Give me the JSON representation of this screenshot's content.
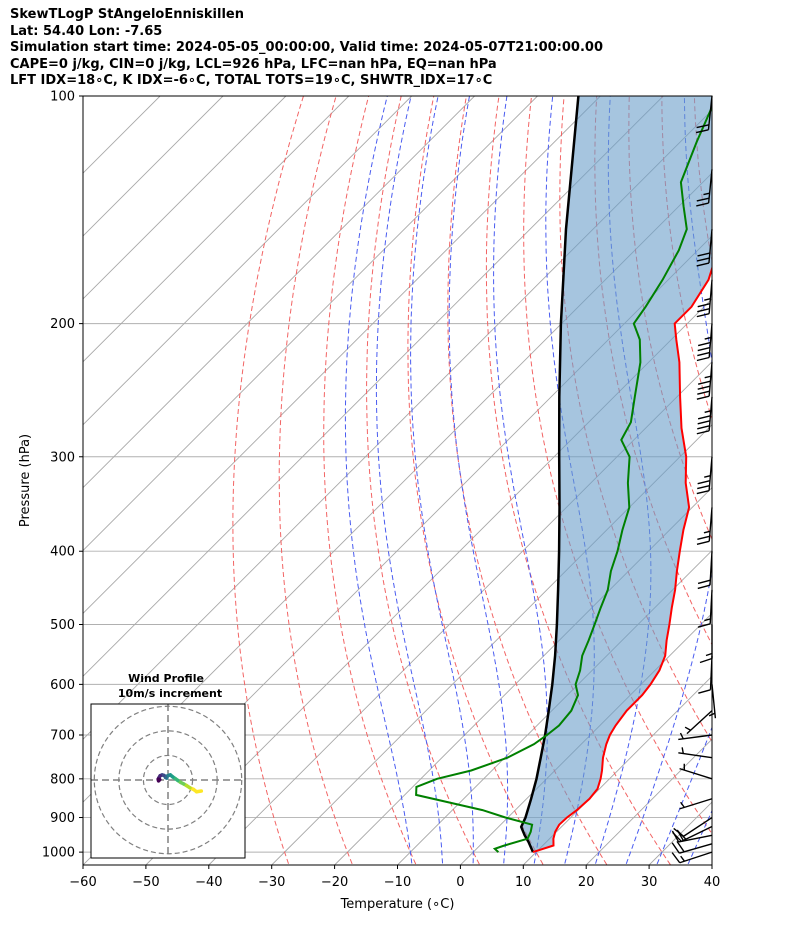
{
  "header": {
    "lines": [
      "SkewTLogP StAngeloEnniskillen",
      "Lat: 54.40   Lon: -7.65",
      "Simulation start time: 2024-05-05_00:00:00, Valid time: 2024-05-07T21:00:00.00",
      "CAPE=0 j/kg, CIN=0 j/kg, LCL=926 hPa, LFC=nan hPa, EQ=nan hPa",
      "LFT IDX=18∘C, K IDX=-6∘C, TOTAL TOTS=19∘C, SHWTR_IDX=17∘C"
    ]
  },
  "chart_data": {
    "type": "line",
    "subtype": "skew-t log-p",
    "xlabel": "Temperature (∘C)",
    "ylabel": "Pressure (hPa)",
    "xlim": [
      -60,
      40
    ],
    "ylim": [
      1040,
      100
    ],
    "y_scale": "log",
    "x_ticks": [
      -60,
      -50,
      -40,
      -30,
      -20,
      -10,
      0,
      10,
      20,
      30,
      40
    ],
    "x_tick_labels": [
      "−60",
      "−50",
      "−40",
      "−30",
      "−20",
      "−10",
      "0",
      "10",
      "20",
      "30",
      "40"
    ],
    "y_ticks": [
      1000,
      900,
      800,
      700,
      600,
      500,
      400,
      300,
      200,
      100
    ],
    "y_tick_labels": [
      "1000",
      "900",
      "800",
      "700",
      "600",
      "500",
      "400",
      "300",
      "200",
      "100"
    ],
    "grid": true,
    "series": [
      {
        "role": "temperature",
        "color": "#ff0000",
        "points": [
          [
            1000,
            9.5
          ],
          [
            980,
            11.7
          ],
          [
            960,
            10.6
          ],
          [
            940,
            9.8
          ],
          [
            920,
            9.3
          ],
          [
            900,
            9.4
          ],
          [
            880,
            9.8
          ],
          [
            850,
            10.0
          ],
          [
            825,
            9.7
          ],
          [
            800,
            8.6
          ],
          [
            780,
            7.5
          ],
          [
            750,
            5.6
          ],
          [
            720,
            4.0
          ],
          [
            700,
            3.1
          ],
          [
            680,
            2.5
          ],
          [
            650,
            1.9
          ],
          [
            620,
            1.9
          ],
          [
            600,
            1.5
          ],
          [
            575,
            0.7
          ],
          [
            550,
            -0.7
          ],
          [
            525,
            -2.9
          ],
          [
            500,
            -5.0
          ],
          [
            475,
            -7.3
          ],
          [
            450,
            -9.6
          ],
          [
            425,
            -12.3
          ],
          [
            400,
            -15.0
          ],
          [
            375,
            -17.8
          ],
          [
            350,
            -20.5
          ],
          [
            325,
            -24.9
          ],
          [
            300,
            -29.0
          ],
          [
            275,
            -34.3
          ],
          [
            250,
            -39.5
          ],
          [
            225,
            -45.1
          ],
          [
            210,
            -49.2
          ],
          [
            200,
            -52.0
          ],
          [
            190,
            -52.0
          ],
          [
            175,
            -53.6
          ],
          [
            160,
            -56.8
          ],
          [
            145,
            -57.5
          ],
          [
            130,
            -57.3
          ],
          [
            115,
            -57.9
          ],
          [
            100,
            -59.0
          ]
        ]
      },
      {
        "role": "dewpoint",
        "color": "#008000",
        "points": [
          [
            1000,
            4.0
          ],
          [
            990,
            2.9
          ],
          [
            980,
            3.9
          ],
          [
            960,
            6.5
          ],
          [
            940,
            5.9
          ],
          [
            920,
            5.0
          ],
          [
            900,
            -0.4
          ],
          [
            880,
            -5.2
          ],
          [
            860,
            -11.6
          ],
          [
            840,
            -18.2
          ],
          [
            820,
            -19.4
          ],
          [
            800,
            -17.4
          ],
          [
            780,
            -13.3
          ],
          [
            750,
            -9.6
          ],
          [
            720,
            -7.5
          ],
          [
            700,
            -6.9
          ],
          [
            680,
            -6.5
          ],
          [
            650,
            -6.9
          ],
          [
            620,
            -8.3
          ],
          [
            600,
            -10.4
          ],
          [
            575,
            -11.9
          ],
          [
            550,
            -13.9
          ],
          [
            525,
            -15.3
          ],
          [
            500,
            -16.9
          ],
          [
            475,
            -18.6
          ],
          [
            450,
            -20.3
          ],
          [
            425,
            -22.8
          ],
          [
            400,
            -24.9
          ],
          [
            375,
            -27.5
          ],
          [
            350,
            -30.0
          ],
          [
            325,
            -34.1
          ],
          [
            300,
            -38.0
          ],
          [
            285,
            -42.0
          ],
          [
            270,
            -43.3
          ],
          [
            250,
            -46.7
          ],
          [
            225,
            -51.3
          ],
          [
            210,
            -55.0
          ],
          [
            200,
            -58.5
          ],
          [
            190,
            -59.3
          ],
          [
            175,
            -60.9
          ],
          [
            160,
            -63.0
          ],
          [
            150,
            -65.1
          ],
          [
            140,
            -69.2
          ],
          [
            130,
            -73.5
          ],
          [
            115,
            -77.4
          ],
          [
            100,
            -81.5
          ]
        ]
      },
      {
        "role": "parcel",
        "color": "#000000",
        "points": [
          [
            1000,
            9.5
          ],
          [
            970,
            7.2
          ],
          [
            950,
            5.5
          ],
          [
            926,
            3.6
          ],
          [
            900,
            2.8
          ],
          [
            850,
            0.7
          ],
          [
            800,
            -1.6
          ],
          [
            750,
            -4.3
          ],
          [
            700,
            -7.2
          ],
          [
            650,
            -10.5
          ],
          [
            600,
            -14.1
          ],
          [
            550,
            -18.2
          ],
          [
            500,
            -22.9
          ],
          [
            450,
            -28.2
          ],
          [
            400,
            -34.2
          ],
          [
            350,
            -41.1
          ],
          [
            300,
            -49.2
          ],
          [
            250,
            -58.7
          ],
          [
            200,
            -70.1
          ],
          [
            150,
            -84.3
          ],
          [
            100,
            -103.5
          ]
        ]
      }
    ],
    "dry_adiabats_C": [
      -30,
      -20,
      -10,
      0,
      10,
      20,
      30,
      40,
      50,
      60,
      70,
      80,
      90,
      100,
      110,
      120,
      130,
      140,
      150,
      160,
      170,
      180,
      190,
      200
    ],
    "moist_adiabats_C": [
      -10,
      -5,
      0,
      5,
      10,
      15,
      20,
      25,
      30,
      35
    ],
    "mixing_ratio_lines": [],
    "wind_barbs": [
      {
        "p": 1000,
        "u": 8.5,
        "v": 2.8
      },
      {
        "p": 975,
        "u": 9.1,
        "v": 2.6
      },
      {
        "p": 950,
        "u": 10.0,
        "v": 2.0
      },
      {
        "p": 925,
        "u": 8.4,
        "v": 4.1
      },
      {
        "p": 900,
        "u": 5.3,
        "v": 3.5
      },
      {
        "p": 850,
        "u": 3.2,
        "v": 1.0
      },
      {
        "p": 800,
        "u": 1.9,
        "v": -0.6
      },
      {
        "p": 750,
        "u": 2.1,
        "v": -0.3
      },
      {
        "p": 700,
        "u": 2.3,
        "v": 0.3
      },
      {
        "p": 650,
        "u": 1.2,
        "v": 1.1
      },
      {
        "p": 600,
        "u": -0.3,
        "v": 3.0
      },
      {
        "p": 550,
        "u": 0.2,
        "v": 4.5
      },
      {
        "p": 500,
        "u": 0.0,
        "v": 6.5
      },
      {
        "p": 450,
        "u": 0.4,
        "v": 7.5
      },
      {
        "p": 400,
        "u": 0.6,
        "v": 10.2
      },
      {
        "p": 350,
        "u": 1.1,
        "v": 13.6
      },
      {
        "p": 300,
        "u": 1.5,
        "v": 17.5
      },
      {
        "p": 250,
        "u": 1.9,
        "v": 22.5
      },
      {
        "p": 225,
        "u": 2.0,
        "v": 24.0
      },
      {
        "p": 200,
        "u": 1.9,
        "v": 23.0
      },
      {
        "p": 175,
        "u": 1.6,
        "v": 19.0
      },
      {
        "p": 150,
        "u": 1.4,
        "v": 15.5
      },
      {
        "p": 125,
        "u": 1.2,
        "v": 12.0
      },
      {
        "p": 100,
        "u": 1.0,
        "v": 9.5
      }
    ],
    "hodograph": {
      "title": "Wind Profile",
      "subtitle": "10m/s increment",
      "ring_step_ms": 10,
      "points": [
        [
          8.5,
          -2.8
        ],
        [
          7.3,
          -3.0
        ],
        [
          6.5,
          -2.4
        ],
        [
          5.6,
          -2.0
        ],
        [
          4.7,
          -1.4
        ],
        [
          4.0,
          -1.0
        ],
        [
          3.2,
          -0.6
        ],
        [
          2.5,
          -0.1
        ],
        [
          1.8,
          0.4
        ],
        [
          1.2,
          0.8
        ],
        [
          0.6,
          1.3
        ],
        [
          0.2,
          1.2
        ],
        [
          -0.2,
          1.0
        ],
        [
          -0.3,
          0.5
        ],
        [
          -0.6,
          0.6
        ],
        [
          -0.8,
          1.0
        ],
        [
          -1.1,
          1.2
        ],
        [
          -1.5,
          1.3
        ],
        [
          -2.0,
          1.1
        ],
        [
          -2.3,
          0.6
        ],
        [
          -2.5,
          0.2
        ],
        [
          -2.4,
          -0.2
        ],
        [
          -2.1,
          0.1
        ]
      ]
    }
  }
}
